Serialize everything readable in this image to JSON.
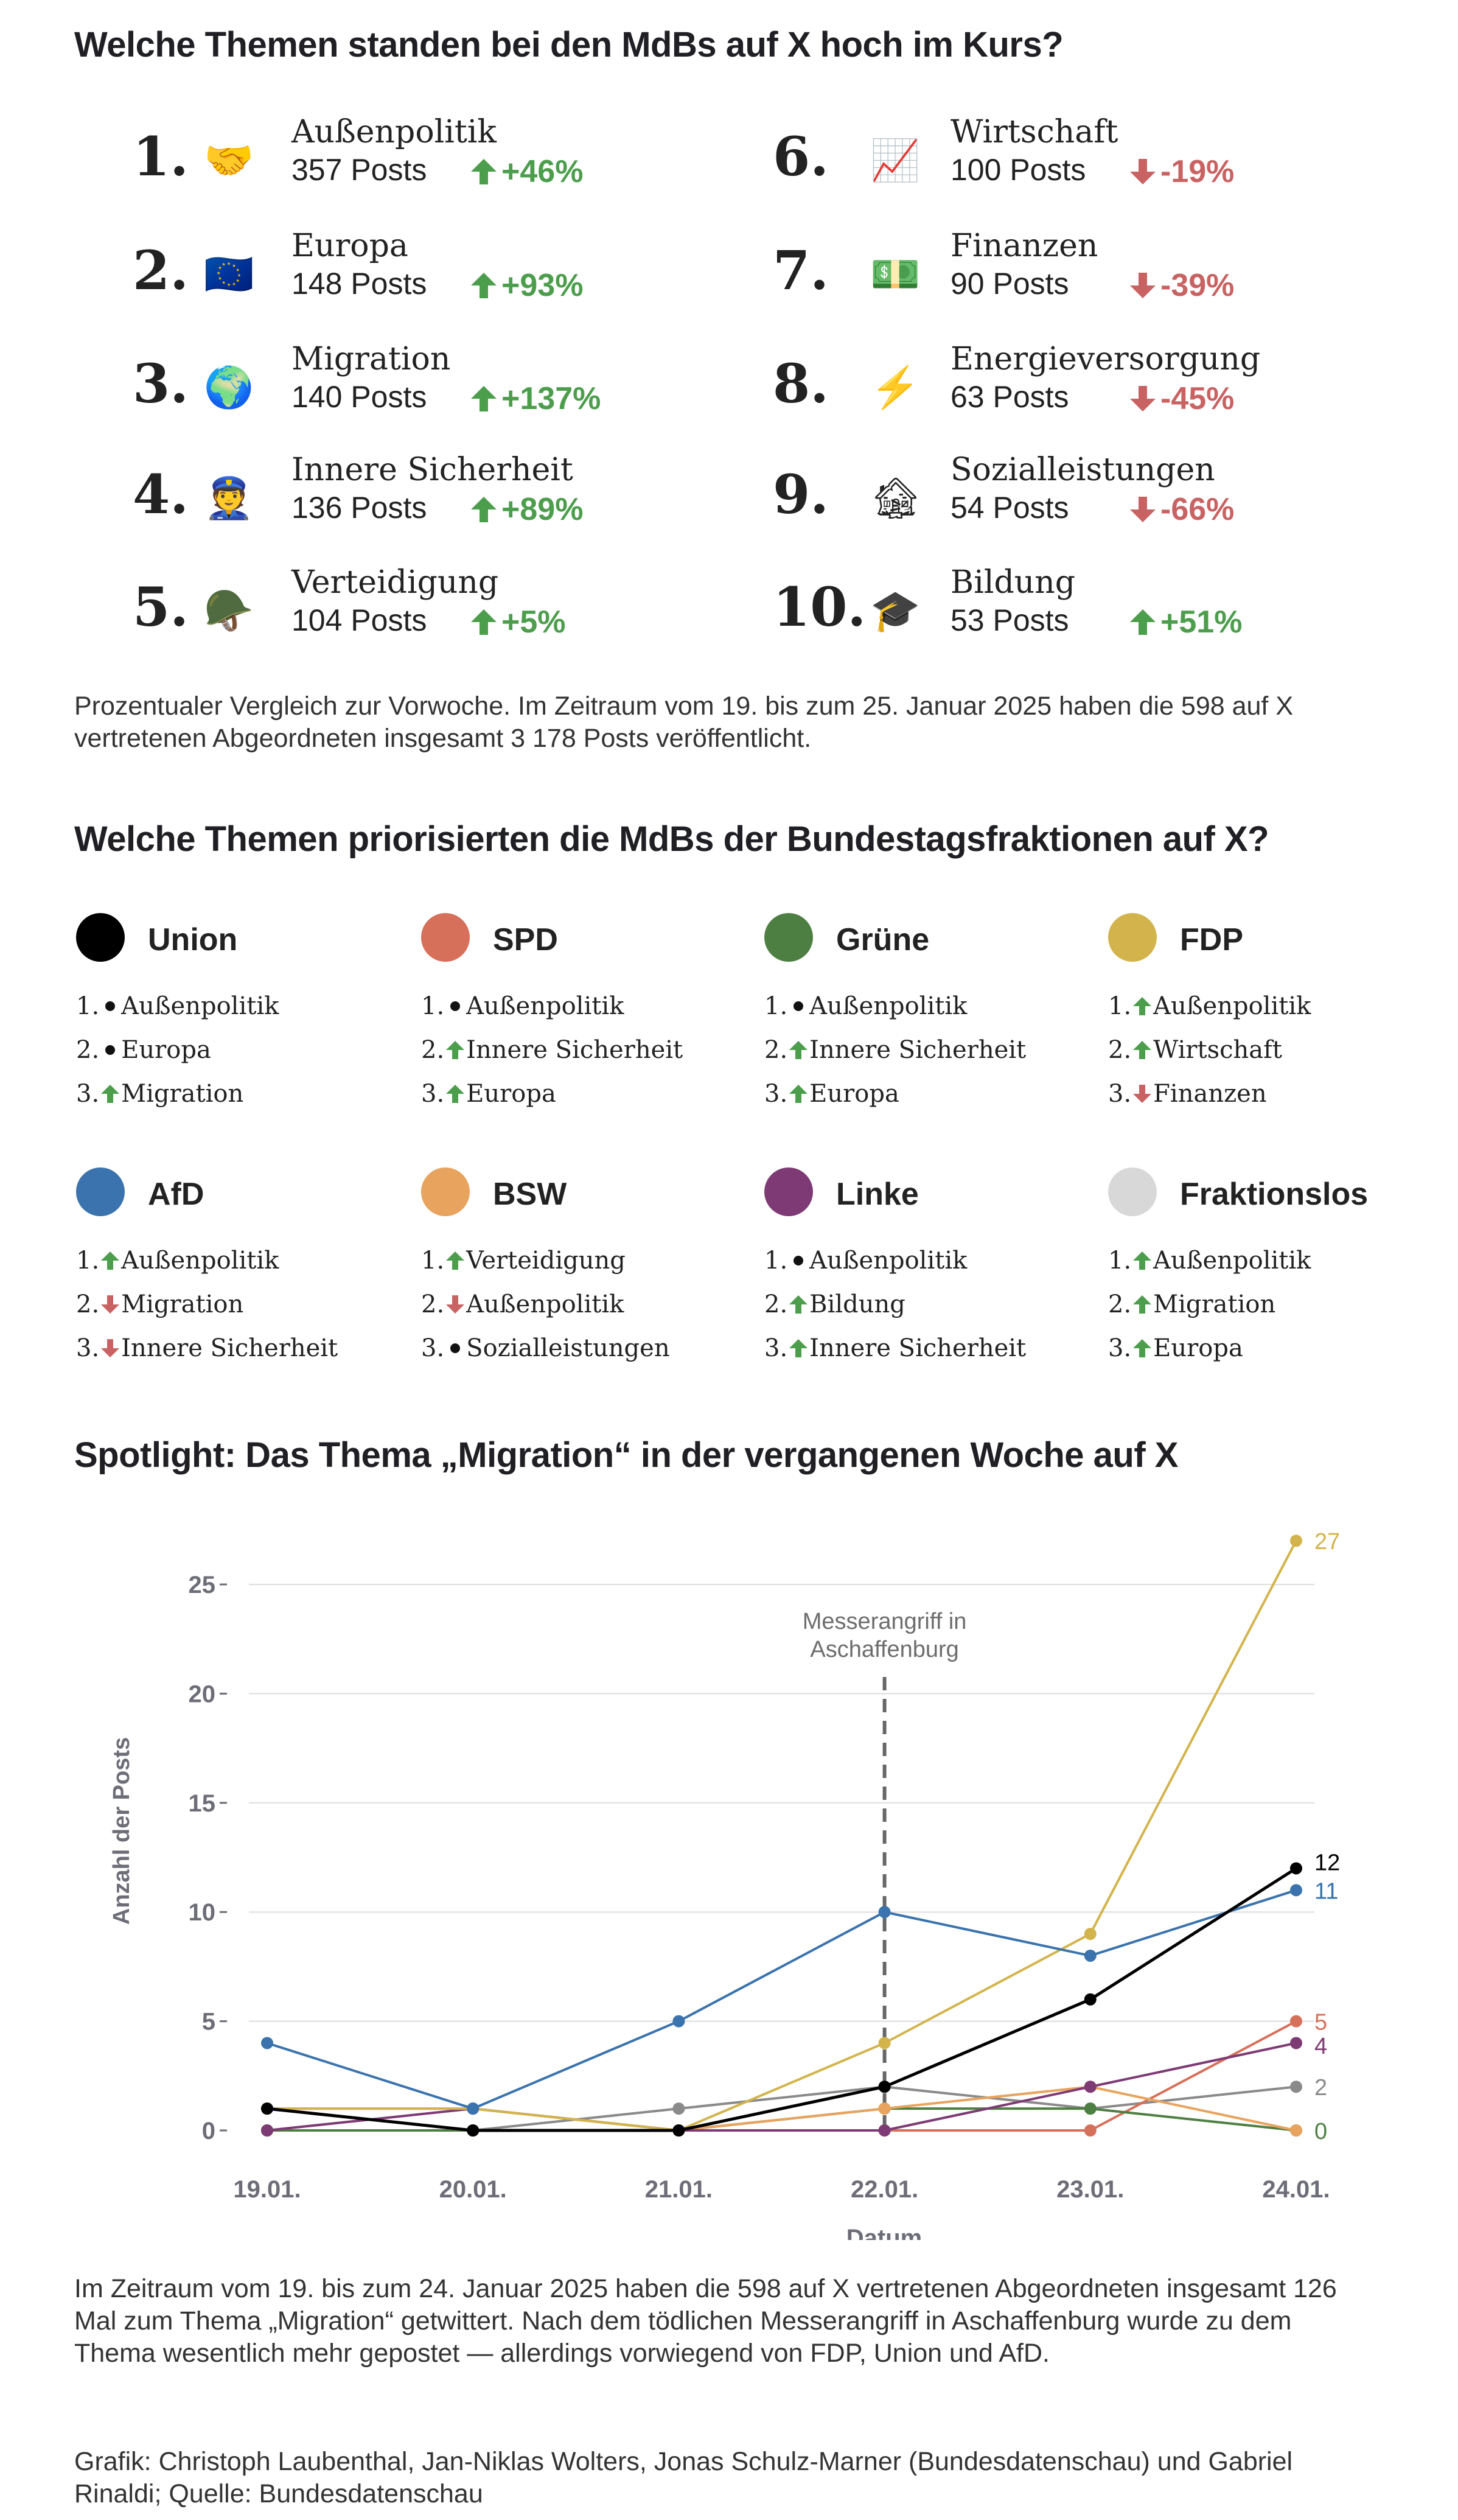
{
  "section1": {
    "title": "Welche  Themen standen bei den MdBs auf X hoch im Kurs?",
    "ranks": [
      {
        "rank": "1.",
        "icon": "handshake-icon",
        "emoji": "🤝",
        "name": "Außenpolitik",
        "posts": "357 Posts",
        "change": "+46%",
        "trend": "up"
      },
      {
        "rank": "2.",
        "icon": "eu-flag-icon",
        "emoji": "🇪🇺",
        "name": "Europa",
        "posts": "148 Posts",
        "change": "+93%",
        "trend": "up"
      },
      {
        "rank": "3.",
        "icon": "globe-icon",
        "emoji": "🌍",
        "name": "Migration",
        "posts": "140 Posts",
        "change": "+137%",
        "trend": "up"
      },
      {
        "rank": "4.",
        "icon": "police-officer-icon",
        "emoji": "👮",
        "name": "Innere Sicherheit",
        "posts": "136 Posts",
        "change": "+89%",
        "trend": "up"
      },
      {
        "rank": "5.",
        "icon": "military-helmet-icon",
        "emoji": "🪖",
        "name": "Verteidigung",
        "posts": "104 Posts",
        "change": "+5%",
        "trend": "up"
      },
      {
        "rank": "6.",
        "icon": "chart-increasing-icon",
        "emoji": "📈",
        "name": "Wirtschaft",
        "posts": "100 Posts",
        "change": "-19%",
        "trend": "down"
      },
      {
        "rank": "7.",
        "icon": "banknote-icon",
        "emoji": "💵",
        "name": "Finanzen",
        "posts": "90 Posts",
        "change": "-39%",
        "trend": "down"
      },
      {
        "rank": "8.",
        "icon": "lightning-icon",
        "emoji": "⚡",
        "name": "Energieversorgung",
        "posts": "63 Posts",
        "change": "-45%",
        "trend": "down"
      },
      {
        "rank": "9.",
        "icon": "derelict-house-icon",
        "emoji": "🏚",
        "name": "Sozialleistungen",
        "posts": "54 Posts",
        "change": "-66%",
        "trend": "down"
      },
      {
        "rank": "10.",
        "icon": "graduation-cap-icon",
        "emoji": "🎓",
        "name": "Bildung",
        "posts": "53 Posts",
        "change": "+51%",
        "trend": "up"
      }
    ],
    "note": "Prozentualer Vergleich zur Vorwoche. Im Zeitraum vom 19. bis zum 25. Januar 2025 haben die 598 auf X vertretenen Abgeordneten insgesamt 3 178 Posts veröffentlicht."
  },
  "section2": {
    "title": "Welche Themen priorisierten die MdBs der Bundestagsfraktionen auf X?",
    "parties": [
      {
        "name": "Union",
        "color": "#000000",
        "items": [
          {
            "n": "1.",
            "t": "same",
            "label": "Außenpolitik"
          },
          {
            "n": "2.",
            "t": "same",
            "label": "Europa"
          },
          {
            "n": "3.",
            "t": "up",
            "label": "Migration"
          }
        ]
      },
      {
        "name": "SPD",
        "color": "#d6705a",
        "items": [
          {
            "n": "1.",
            "t": "same",
            "label": "Außenpolitik"
          },
          {
            "n": "2.",
            "t": "up",
            "label": "Innere Sicherheit"
          },
          {
            "n": "3.",
            "t": "up",
            "label": "Europa"
          }
        ]
      },
      {
        "name": "Grüne",
        "color": "#4e7f42",
        "items": [
          {
            "n": "1.",
            "t": "same",
            "label": "Außenpolitik"
          },
          {
            "n": "2.",
            "t": "up",
            "label": "Innere Sicherheit"
          },
          {
            "n": "3.",
            "t": "up",
            "label": "Europa"
          }
        ]
      },
      {
        "name": "FDP",
        "color": "#d3b44c",
        "items": [
          {
            "n": "1.",
            "t": "up",
            "label": "Außenpolitik"
          },
          {
            "n": "2.",
            "t": "up",
            "label": "Wirtschaft"
          },
          {
            "n": "3.",
            "t": "down",
            "label": "Finanzen"
          }
        ]
      },
      {
        "name": "AfD",
        "color": "#3a73ad",
        "items": [
          {
            "n": "1.",
            "t": "up",
            "label": "Außenpolitik"
          },
          {
            "n": "2.",
            "t": "down",
            "label": "Migration"
          },
          {
            "n": "3.",
            "t": "down",
            "label": "Innere Sicherheit"
          }
        ]
      },
      {
        "name": "BSW",
        "color": "#e8a35e",
        "items": [
          {
            "n": "1.",
            "t": "up",
            "label": "Verteidigung"
          },
          {
            "n": "2.",
            "t": "down",
            "label": "Außenpolitik"
          },
          {
            "n": "3.",
            "t": "same",
            "label": "Sozialleistungen"
          }
        ]
      },
      {
        "name": "Linke",
        "color": "#7e3a74",
        "items": [
          {
            "n": "1.",
            "t": "same",
            "label": "Außenpolitik"
          },
          {
            "n": "2.",
            "t": "up",
            "label": "Bildung"
          },
          {
            "n": "3.",
            "t": "up",
            "label": "Innere Sicherheit"
          }
        ]
      },
      {
        "name": "Fraktionslos",
        "color": "#d8d8d8",
        "items": [
          {
            "n": "1.",
            "t": "up",
            "label": "Außenpolitik"
          },
          {
            "n": "2.",
            "t": "up",
            "label": "Migration"
          },
          {
            "n": "3.",
            "t": "up",
            "label": "Europa"
          }
        ]
      }
    ]
  },
  "colors": {
    "up": "#4c9e4c",
    "down": "#c96363",
    "text": "#222222",
    "axis": "#6d6d78"
  },
  "section3": {
    "title": "Spotlight: Das Thema „Migration“ in der vergangenen Woche auf X",
    "body": "Im Zeitraum vom 19. bis zum 24. Januar 2025 haben die 598 auf X vertretenen Abgeordneten insgesamt 126 Mal zum Thema „Migration“ getwittert. Nach dem tödlichen Messerangriff in Aschaffenburg wurde zu dem Thema wesentlich mehr gepostet — allerdings vorwiegend von FDP, Union und AfD.",
    "credits": "Grafik: Christoph Laubenthal, Jan-Niklas Wolters, Jonas Schulz-Marner (Bundesdatenschau) und Gabriel Rinaldi; Quelle: Bundesdatenschau"
  },
  "chart_data": {
    "type": "line",
    "xlabel": "Datum",
    "ylabel": "Anzahl der Posts",
    "categories": [
      "19.01.",
      "20.01.",
      "21.01.",
      "22.01.",
      "23.01.",
      "24.01."
    ],
    "yticks": [
      0,
      5,
      10,
      15,
      20,
      25
    ],
    "ylim": [
      0,
      27
    ],
    "grid": true,
    "annotation": {
      "x": "22.01.",
      "lines": [
        "Messerangriff in",
        "Aschaffenburg"
      ]
    },
    "series": [
      {
        "party": "Fraktionslos",
        "color": "#8a8a8a",
        "values": [
          0,
          0,
          1,
          2,
          1,
          2
        ]
      },
      {
        "party": "SPD",
        "color": "#d6705a",
        "values": [
          0,
          0,
          0,
          0,
          0,
          5
        ]
      },
      {
        "party": "Grüne",
        "color": "#4e7f42",
        "values": [
          0,
          0,
          0,
          1,
          1,
          0
        ]
      },
      {
        "party": "BSW",
        "color": "#e8a35e",
        "values": [
          1,
          1,
          0,
          1,
          2,
          0
        ]
      },
      {
        "party": "Linke",
        "color": "#7e3a74",
        "values": [
          0,
          1,
          0,
          0,
          2,
          4
        ]
      },
      {
        "party": "FDP",
        "color": "#d3b44c",
        "values": [
          1,
          1,
          0,
          4,
          9,
          27
        ]
      },
      {
        "party": "AfD",
        "color": "#3a73ad",
        "values": [
          4,
          1,
          5,
          10,
          8,
          11
        ]
      },
      {
        "party": "Union",
        "color": "#000000",
        "values": [
          1,
          0,
          0,
          2,
          6,
          12
        ]
      }
    ],
    "end_labels": [
      {
        "text": "27",
        "color": "#d3b44c"
      },
      {
        "text": "12",
        "color": "#000000"
      },
      {
        "text": "11",
        "color": "#3a73ad"
      },
      {
        "text": "5",
        "color": "#d6705a"
      },
      {
        "text": "4",
        "color": "#7e3a74"
      },
      {
        "text": "2",
        "color": "#8a8a8a"
      },
      {
        "text": "0",
        "color": "#4e7f42"
      }
    ]
  }
}
